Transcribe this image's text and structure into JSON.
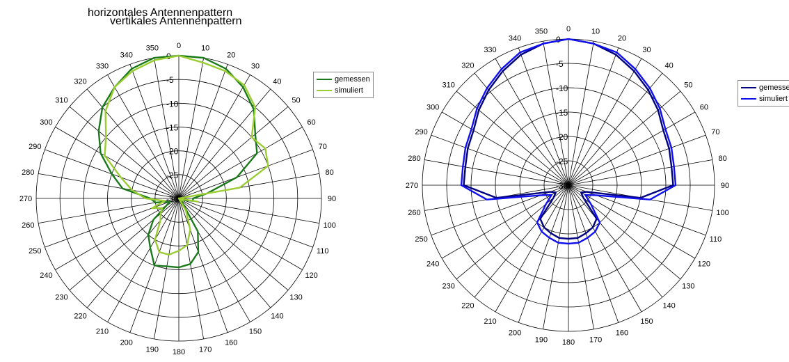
{
  "chart_data": [
    {
      "type": "polar-line",
      "title": "vertikales Antennenpattern",
      "angle_ticks": [
        0,
        10,
        20,
        30,
        40,
        50,
        60,
        70,
        80,
        90,
        100,
        110,
        120,
        130,
        140,
        150,
        160,
        170,
        180,
        190,
        200,
        210,
        220,
        230,
        240,
        250,
        260,
        270,
        280,
        290,
        300,
        310,
        320,
        330,
        340,
        350
      ],
      "radial_ticks": [
        0,
        -5,
        -10,
        -15,
        -20,
        -25,
        -30
      ],
      "radial_range": [
        -30,
        0
      ],
      "angle_direction": "clockwise",
      "angle_zero": "top",
      "legend_position": "right",
      "series": [
        {
          "name": "gemessen",
          "color": "#1a7a1a",
          "angles": [
            0,
            10,
            20,
            30,
            40,
            50,
            60,
            70,
            80,
            90,
            100,
            110,
            120,
            130,
            140,
            150,
            160,
            170,
            180,
            190,
            200,
            210,
            220,
            230,
            240,
            250,
            260,
            270,
            280,
            290,
            300,
            310,
            320,
            330,
            340,
            350
          ],
          "values": [
            0,
            0,
            -1,
            -3,
            -5.5,
            -9,
            -11,
            -17,
            -24,
            -27,
            -27,
            -29,
            -30,
            -30,
            -29,
            -22,
            -18,
            -16,
            -15.5,
            -15.5,
            -15,
            -18,
            -20,
            -23,
            -27,
            -28,
            -25,
            -24,
            -18,
            -15,
            -11,
            -8,
            -5,
            -3,
            -1,
            0
          ]
        },
        {
          "name": "simuliert",
          "color": "#9acd32",
          "angles": [
            0,
            10,
            20,
            30,
            40,
            50,
            60,
            70,
            80,
            90,
            100,
            110,
            120,
            130,
            140,
            150,
            160,
            170,
            180,
            190,
            200,
            210,
            220,
            230,
            240,
            250,
            260,
            270,
            280,
            290,
            300,
            310,
            320,
            330,
            340,
            350
          ],
          "values": [
            0,
            -1,
            -1.5,
            -2.5,
            -5,
            -10,
            -9,
            -10,
            -17,
            -30,
            -26,
            -30,
            -29,
            -30,
            -30,
            -27,
            -23,
            -20,
            -19,
            -18,
            -18,
            -20,
            -24,
            -25,
            -26,
            -24,
            -27,
            -23,
            -20,
            -17,
            -12,
            -10,
            -6,
            -3,
            -1.5,
            -0.5
          ]
        }
      ]
    },
    {
      "type": "polar-line",
      "title": "horizontales Antennenpattern",
      "angle_ticks": [
        0,
        10,
        20,
        30,
        40,
        50,
        60,
        70,
        80,
        90,
        100,
        110,
        120,
        130,
        140,
        150,
        160,
        170,
        180,
        190,
        200,
        210,
        220,
        230,
        240,
        250,
        260,
        270,
        280,
        290,
        300,
        310,
        320,
        330,
        340,
        350
      ],
      "radial_ticks": [
        0,
        -5,
        -10,
        -15,
        -20,
        -25,
        -30
      ],
      "radial_range": [
        -30,
        0
      ],
      "angle_direction": "clockwise",
      "angle_zero": "top",
      "legend_position": "right",
      "series": [
        {
          "name": "gemessen",
          "color": "#000080",
          "angles": [
            0,
            10,
            20,
            30,
            40,
            50,
            60,
            70,
            80,
            90,
            100,
            110,
            120,
            130,
            140,
            150,
            160,
            170,
            180,
            190,
            200,
            210,
            220,
            230,
            240,
            250,
            260,
            270,
            280,
            290,
            300,
            310,
            320,
            330,
            340,
            350
          ],
          "values": [
            0,
            -0.5,
            -1.5,
            -3,
            -4.5,
            -6,
            -7.5,
            -8,
            -8.5,
            -8.5,
            -15,
            -26,
            -27,
            -26,
            -21,
            -20,
            -19.5,
            -19,
            -19,
            -19,
            -19.5,
            -20,
            -21,
            -26,
            -27,
            -26,
            -15,
            -8.5,
            -8.5,
            -8,
            -7.5,
            -6,
            -4.5,
            -3,
            -1.5,
            -0.5
          ]
        },
        {
          "name": "simuliert",
          "color": "#1010ee",
          "angles": [
            0,
            10,
            20,
            30,
            40,
            50,
            60,
            70,
            80,
            90,
            100,
            110,
            120,
            130,
            140,
            150,
            160,
            170,
            180,
            190,
            200,
            210,
            220,
            230,
            240,
            250,
            260,
            270,
            280,
            290,
            300,
            310,
            320,
            330,
            340,
            350
          ],
          "values": [
            0,
            -0.5,
            -1,
            -2.5,
            -4,
            -5.5,
            -7,
            -7.5,
            -8,
            -8,
            -13,
            -24,
            -26,
            -24,
            -20,
            -19,
            -18.5,
            -18,
            -18,
            -18,
            -18.5,
            -19,
            -20,
            -24,
            -26,
            -24,
            -13,
            -8,
            -8,
            -7.5,
            -7,
            -5.5,
            -4,
            -2.5,
            -1,
            -0.5
          ]
        }
      ]
    }
  ]
}
